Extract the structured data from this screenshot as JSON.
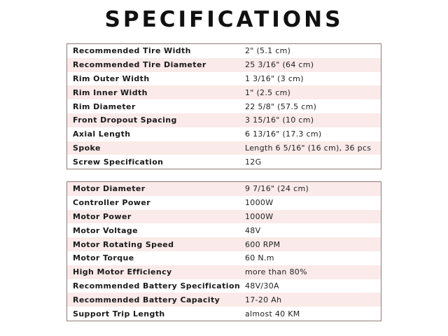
{
  "title": "SPECIFICATIONS",
  "stripe_color": "#fbeaea",
  "wheel_specs": [
    {
      "label": "Recommended Tire Width",
      "value": "2\" (5.1 cm)"
    },
    {
      "label": "Recommended Tire Diameter",
      "value": "25 3/16\" (64 cm)"
    },
    {
      "label": "Rim Outer Width",
      "value": "1 3/16\" (3 cm)"
    },
    {
      "label": "Rim Inner Width",
      "value": "1\" (2.5 cm)"
    },
    {
      "label": "Rim Diameter",
      "value": "22 5/8\" (57.5 cm)"
    },
    {
      "label": "Front Dropout Spacing",
      "value": "3 15/16\" (10 cm)"
    },
    {
      "label": "Axial Length",
      "value": "6 13/16\" (17.3 cm)"
    },
    {
      "label": "Spoke",
      "value": "Length 6 5/16\" (16 cm), 36 pcs"
    },
    {
      "label": "Screw Specification",
      "value": "12G"
    }
  ],
  "motor_specs": [
    {
      "label": "Motor Diameter",
      "value": "9 7/16\" (24 cm)"
    },
    {
      "label": "Controller Power",
      "value": "1000W"
    },
    {
      "label": "Motor Power",
      "value": "1000W"
    },
    {
      "label": "Motor Voltage",
      "value": "48V"
    },
    {
      "label": "Motor Rotating Speed",
      "value": "600 RPM"
    },
    {
      "label": "Motor Torque",
      "value": "60 N.m"
    },
    {
      "label": "High Motor Efficiency",
      "value": "more than 80%"
    },
    {
      "label": "Recommended Battery Specification",
      "value": "48V/30A"
    },
    {
      "label": "Recommended Battery Capacity",
      "value": "17-20 Ah"
    },
    {
      "label": "Support Trip Length",
      "value": "almost 40 KM"
    }
  ]
}
